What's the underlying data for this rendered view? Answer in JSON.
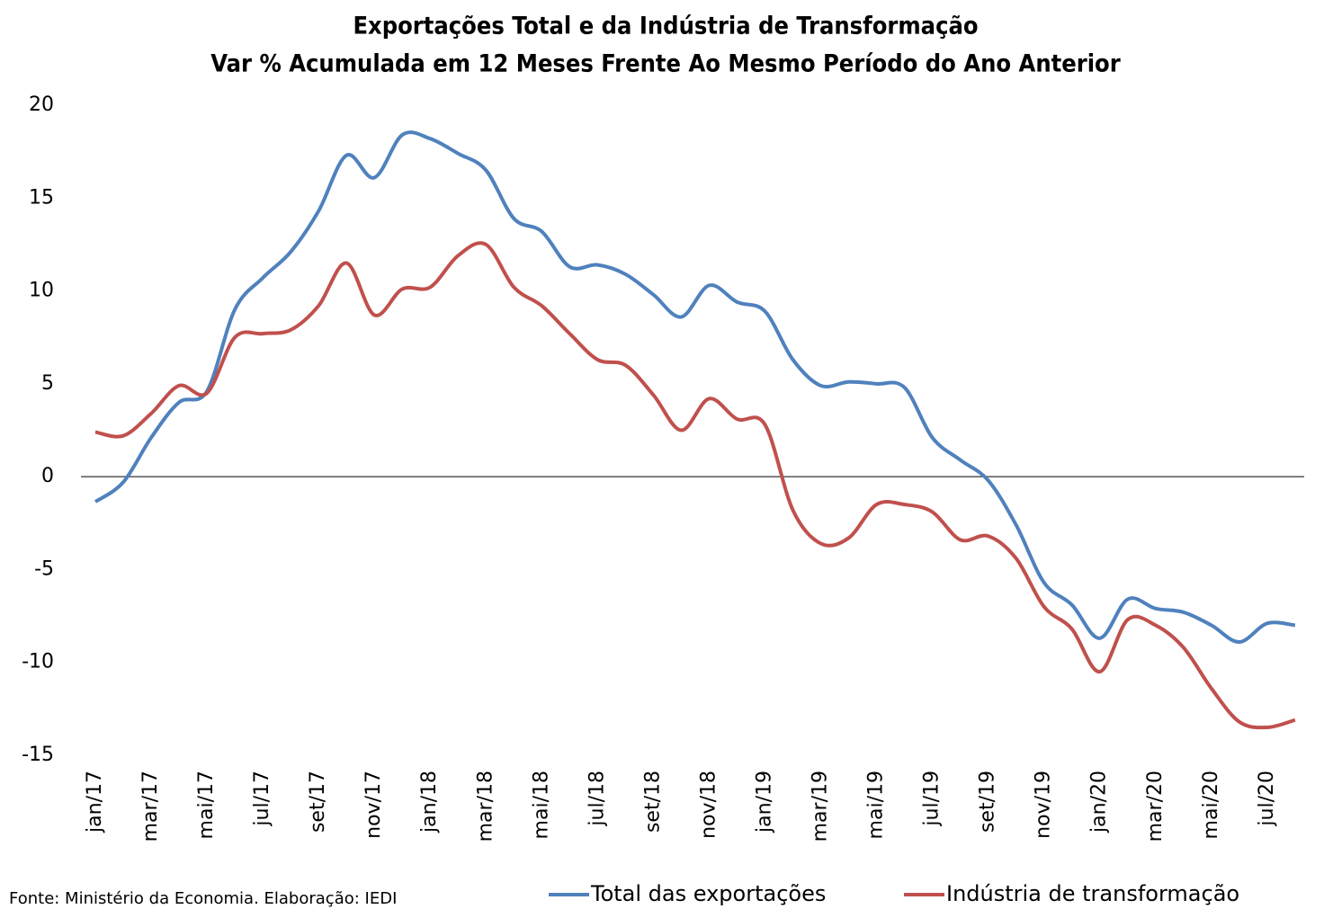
{
  "chart_data": {
    "type": "line",
    "title": "Exportações Total e da Indústria de Transformação",
    "subtitle": "Var % Acumulada em 12 Meses Frente Ao Mesmo Período do Ano Anterior",
    "source": "Fonte: Ministério da Economia. Elaboração: IEDI",
    "categories": [
      "jan/17",
      null,
      "mar/17",
      null,
      "mai/17",
      null,
      "jul/17",
      null,
      "set/17",
      null,
      "nov/17",
      null,
      "jan/18",
      null,
      "mar/18",
      null,
      "mai/18",
      null,
      "jul/18",
      null,
      "set/18",
      null,
      "nov/18",
      null,
      "jan/19",
      null,
      "mar/19",
      null,
      "mai/19",
      null,
      "jul/19",
      null,
      "set/19",
      null,
      "nov/19",
      null,
      "jan/20",
      null,
      "mar/20",
      null,
      "mai/20",
      null,
      "jul/20",
      null
    ],
    "series": [
      {
        "name": "Total das exportações",
        "color": "#4f81bd",
        "values": [
          -1.35,
          -0.3,
          2.1,
          4.0,
          4.6,
          9.0,
          10.7,
          12.1,
          14.3,
          17.3,
          16.1,
          18.4,
          18.2,
          17.4,
          16.5,
          13.9,
          13.2,
          11.3,
          11.4,
          10.9,
          9.8,
          8.6,
          10.3,
          9.4,
          8.9,
          6.3,
          4.9,
          5.1,
          5.0,
          4.8,
          2.1,
          0.9,
          -0.2,
          -2.6,
          -5.7,
          -6.9,
          -8.7,
          -6.6,
          -7.1,
          -7.3,
          -8.0,
          -8.9,
          -7.9,
          -8.0
        ]
      },
      {
        "name": "Indústria de transformação",
        "color": "#c0504d",
        "values": [
          2.4,
          2.2,
          3.4,
          4.9,
          4.5,
          7.5,
          7.7,
          7.9,
          9.2,
          11.5,
          8.7,
          10.1,
          10.2,
          11.9,
          12.5,
          10.2,
          9.2,
          7.7,
          6.3,
          6.0,
          4.4,
          2.5,
          4.2,
          3.1,
          2.8,
          -1.8,
          -3.6,
          -3.3,
          -1.5,
          -1.5,
          -1.9,
          -3.4,
          -3.2,
          -4.4,
          -7.0,
          -8.2,
          -10.5,
          -7.7,
          -8.0,
          -9.2,
          -11.4,
          -13.2,
          -13.5,
          -13.1
        ]
      }
    ],
    "ylim": [
      -15,
      20
    ],
    "yticks": [
      -15,
      -10,
      -5,
      0,
      5,
      10,
      15,
      20
    ],
    "zero_line": true,
    "grid": false,
    "legend": "bottom"
  }
}
